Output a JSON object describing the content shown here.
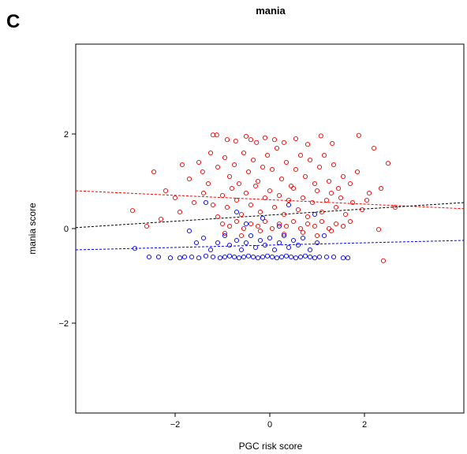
{
  "panel_letter": "C",
  "chart_data": {
    "type": "scatter",
    "title": "mania",
    "xlabel": "PGC risk score",
    "ylabel": "mania score",
    "xlim": [
      -4.1,
      4.1
    ],
    "ylim": [
      -3.9,
      3.9
    ],
    "xticks": [
      -2,
      0,
      2
    ],
    "yticks": [
      -2,
      0,
      2
    ],
    "grid": false,
    "legend": "none",
    "colors": {
      "red": "#ff0000",
      "blue": "#0000ff",
      "black": "#000000"
    },
    "series": [
      {
        "color": "red",
        "marker": "open-circle",
        "points": [
          [
            -1.2,
            1.98
          ],
          [
            -1.12,
            1.98
          ],
          [
            -0.9,
            1.88
          ],
          [
            -0.72,
            1.85
          ],
          [
            -0.5,
            1.95
          ],
          [
            -0.4,
            1.88
          ],
          [
            -0.28,
            1.82
          ],
          [
            -0.1,
            1.92
          ],
          [
            0.1,
            1.88
          ],
          [
            0.3,
            1.82
          ],
          [
            0.55,
            1.9
          ],
          [
            0.8,
            1.78
          ],
          [
            1.08,
            1.96
          ],
          [
            1.32,
            1.8
          ],
          [
            1.88,
            1.97
          ],
          [
            2.2,
            1.7
          ],
          [
            2.5,
            1.38
          ],
          [
            2.35,
            0.85
          ],
          [
            2.65,
            0.45
          ],
          [
            -2.45,
            1.2
          ],
          [
            -2.2,
            0.8
          ],
          [
            -1.85,
            1.35
          ],
          [
            -1.7,
            1.05
          ],
          [
            -1.5,
            1.4
          ],
          [
            -1.42,
            1.2
          ],
          [
            -1.3,
            0.95
          ],
          [
            -1.25,
            1.6
          ],
          [
            -1.1,
            1.3
          ],
          [
            -0.95,
            1.5
          ],
          [
            -0.85,
            1.1
          ],
          [
            -0.75,
            1.35
          ],
          [
            -0.65,
            0.95
          ],
          [
            -0.55,
            1.6
          ],
          [
            -0.45,
            1.2
          ],
          [
            -0.35,
            1.45
          ],
          [
            -0.25,
            1.0
          ],
          [
            -0.15,
            1.3
          ],
          [
            -0.05,
            1.55
          ],
          [
            0.05,
            1.25
          ],
          [
            0.15,
            1.7
          ],
          [
            0.25,
            1.05
          ],
          [
            0.35,
            1.4
          ],
          [
            0.45,
            0.9
          ],
          [
            0.55,
            1.25
          ],
          [
            0.65,
            1.55
          ],
          [
            0.75,
            1.1
          ],
          [
            0.85,
            1.45
          ],
          [
            0.95,
            0.95
          ],
          [
            1.05,
            1.3
          ],
          [
            1.15,
            1.55
          ],
          [
            1.25,
            1.0
          ],
          [
            1.35,
            1.35
          ],
          [
            1.45,
            0.85
          ],
          [
            1.55,
            1.1
          ],
          [
            1.7,
            0.95
          ],
          [
            1.85,
            1.2
          ],
          [
            2.05,
            0.6
          ],
          [
            -2.9,
            0.38
          ],
          [
            -2.6,
            0.05
          ],
          [
            -2.3,
            0.2
          ],
          [
            -2.0,
            0.65
          ],
          [
            -1.9,
            0.35
          ],
          [
            -1.6,
            0.55
          ],
          [
            -1.4,
            0.75
          ],
          [
            -1.2,
            0.5
          ],
          [
            -1.1,
            0.25
          ],
          [
            -1.0,
            0.7
          ],
          [
            -0.9,
            0.45
          ],
          [
            -0.8,
            0.85
          ],
          [
            -0.7,
            0.6
          ],
          [
            -0.6,
            0.3
          ],
          [
            -0.5,
            0.75
          ],
          [
            -0.4,
            0.5
          ],
          [
            -0.3,
            0.9
          ],
          [
            -0.2,
            0.35
          ],
          [
            -0.1,
            0.65
          ],
          [
            0.0,
            0.8
          ],
          [
            0.1,
            0.45
          ],
          [
            0.2,
            0.7
          ],
          [
            0.3,
            0.3
          ],
          [
            0.4,
            0.6
          ],
          [
            0.5,
            0.85
          ],
          [
            0.6,
            0.4
          ],
          [
            0.7,
            0.65
          ],
          [
            0.8,
            0.25
          ],
          [
            0.9,
            0.55
          ],
          [
            1.0,
            0.8
          ],
          [
            1.1,
            0.35
          ],
          [
            1.2,
            0.6
          ],
          [
            1.3,
            0.75
          ],
          [
            1.4,
            0.45
          ],
          [
            1.5,
            0.65
          ],
          [
            1.6,
            0.3
          ],
          [
            1.75,
            0.55
          ],
          [
            1.95,
            0.4
          ],
          [
            2.1,
            0.75
          ],
          [
            -1.0,
            0.1
          ],
          [
            -0.85,
            0.05
          ],
          [
            -0.7,
            0.15
          ],
          [
            -0.55,
            0.0
          ],
          [
            -0.4,
            0.1
          ],
          [
            -0.25,
            0.05
          ],
          [
            -0.1,
            0.15
          ],
          [
            0.05,
            0.0
          ],
          [
            0.2,
            0.1
          ],
          [
            0.35,
            0.05
          ],
          [
            0.5,
            0.15
          ],
          [
            0.65,
            0.0
          ],
          [
            0.8,
            0.1
          ],
          [
            0.95,
            0.05
          ],
          [
            1.1,
            0.15
          ],
          [
            1.25,
            0.0
          ],
          [
            1.4,
            0.1
          ],
          [
            1.55,
            0.05
          ],
          [
            1.7,
            0.15
          ],
          [
            2.4,
            -0.68
          ],
          [
            -0.95,
            -0.1
          ],
          [
            -0.6,
            -0.15
          ],
          [
            -0.2,
            -0.05
          ],
          [
            0.3,
            -0.12
          ],
          [
            0.7,
            -0.08
          ],
          [
            1.0,
            -0.15
          ],
          [
            1.3,
            -0.05
          ],
          [
            2.3,
            -0.02
          ]
        ]
      },
      {
        "color": "blue",
        "marker": "open-circle",
        "points": [
          [
            -2.85,
            -0.42
          ],
          [
            -2.55,
            -0.6
          ],
          [
            -2.35,
            -0.6
          ],
          [
            -2.1,
            -0.62
          ],
          [
            -1.9,
            -0.62
          ],
          [
            -1.8,
            -0.6
          ],
          [
            -1.65,
            -0.6
          ],
          [
            -1.5,
            -0.62
          ],
          [
            -1.35,
            -0.58
          ],
          [
            -1.2,
            -0.6
          ],
          [
            -1.05,
            -0.62
          ],
          [
            -0.95,
            -0.6
          ],
          [
            -0.85,
            -0.58
          ],
          [
            -0.75,
            -0.6
          ],
          [
            -0.65,
            -0.62
          ],
          [
            -0.55,
            -0.6
          ],
          [
            -0.45,
            -0.58
          ],
          [
            -0.35,
            -0.6
          ],
          [
            -0.25,
            -0.62
          ],
          [
            -0.15,
            -0.6
          ],
          [
            -0.05,
            -0.58
          ],
          [
            0.05,
            -0.6
          ],
          [
            0.15,
            -0.62
          ],
          [
            0.25,
            -0.6
          ],
          [
            0.35,
            -0.58
          ],
          [
            0.45,
            -0.6
          ],
          [
            0.55,
            -0.62
          ],
          [
            0.65,
            -0.6
          ],
          [
            0.75,
            -0.58
          ],
          [
            0.85,
            -0.6
          ],
          [
            0.95,
            -0.62
          ],
          [
            1.05,
            -0.6
          ],
          [
            1.2,
            -0.6
          ],
          [
            1.35,
            -0.6
          ],
          [
            1.55,
            -0.62
          ],
          [
            1.65,
            -0.62
          ],
          [
            -1.7,
            -0.05
          ],
          [
            -1.55,
            -0.3
          ],
          [
            -1.4,
            -0.2
          ],
          [
            -1.25,
            -0.45
          ],
          [
            -1.1,
            -0.3
          ],
          [
            -0.95,
            -0.15
          ],
          [
            -0.85,
            -0.35
          ],
          [
            -0.7,
            -0.25
          ],
          [
            -0.6,
            -0.45
          ],
          [
            -0.5,
            -0.3
          ],
          [
            -0.4,
            -0.15
          ],
          [
            -0.3,
            -0.4
          ],
          [
            -0.2,
            -0.25
          ],
          [
            -0.1,
            -0.35
          ],
          [
            0.0,
            -0.2
          ],
          [
            0.1,
            -0.45
          ],
          [
            0.2,
            -0.3
          ],
          [
            0.3,
            -0.15
          ],
          [
            0.4,
            -0.4
          ],
          [
            0.5,
            -0.25
          ],
          [
            0.6,
            -0.35
          ],
          [
            0.7,
            -0.2
          ],
          [
            0.85,
            -0.45
          ],
          [
            1.0,
            -0.3
          ],
          [
            1.15,
            -0.15
          ],
          [
            -1.35,
            0.55
          ],
          [
            -0.7,
            0.35
          ],
          [
            -0.15,
            0.22
          ],
          [
            0.4,
            0.5
          ],
          [
            0.95,
            0.3
          ],
          [
            -0.5,
            0.1
          ],
          [
            0.2,
            0.05
          ]
        ]
      }
    ],
    "fit_lines": [
      {
        "color": "red",
        "style": "dashed",
        "x": [
          -4.1,
          4.1
        ],
        "y": [
          0.8,
          0.42
        ]
      },
      {
        "color": "black",
        "style": "dashed",
        "x": [
          -4.1,
          4.1
        ],
        "y": [
          0.02,
          0.55
        ]
      },
      {
        "color": "blue",
        "style": "dashed",
        "x": [
          -4.1,
          4.1
        ],
        "y": [
          -0.45,
          -0.25
        ]
      }
    ]
  }
}
